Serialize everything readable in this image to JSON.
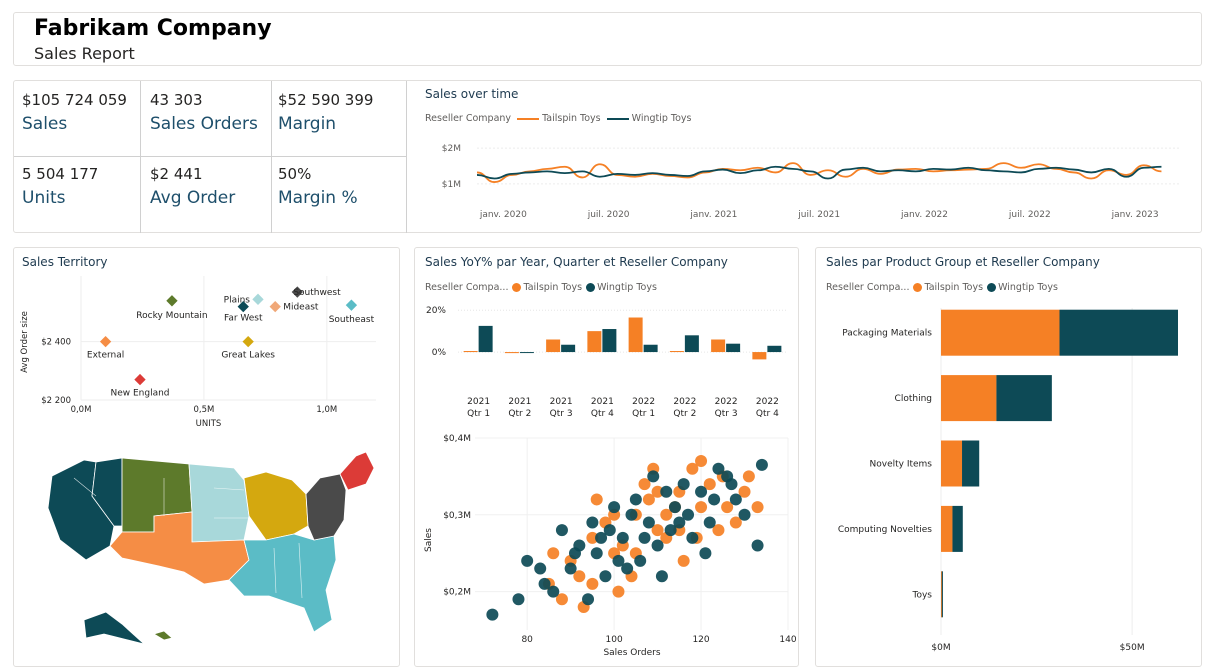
{
  "header": {
    "title": "Fabrikam Company",
    "subtitle": "Sales Report"
  },
  "colors": {
    "tailspin": "#f58025",
    "wingtip": "#0d4a56",
    "accent_text": "#1e4f6b"
  },
  "kpis": [
    {
      "value": "$105 724 059",
      "label": "Sales"
    },
    {
      "value": "43 303",
      "label": "Sales Orders"
    },
    {
      "value": "$52 590 399",
      "label": "Margin"
    },
    {
      "value": "5 504 177",
      "label": "Units"
    },
    {
      "value": "$2 441",
      "label": "Avg Order"
    },
    {
      "value": "50%",
      "label": "Margin %"
    }
  ],
  "legend": {
    "label_full": "Reseller Company",
    "label_short": "Reseller Compa...",
    "tailspin": "Tailspin Toys",
    "wingtip": "Wingtip Toys"
  },
  "panels": {
    "sales_over_time": "Sales over time",
    "territory": "Sales Territory",
    "yoy": "Sales YoY% par Year, Quarter et Reseller Company",
    "product": "Sales par Product Group et Reseller Company"
  },
  "chart_data": [
    {
      "id": "sales_over_time",
      "type": "line",
      "title": "Sales over time",
      "x_ticks": [
        "janv. 2020",
        "juil. 2020",
        "janv. 2021",
        "juil. 2021",
        "janv. 2022",
        "juil. 2022",
        "janv. 2023"
      ],
      "y_ticks": [
        "$1M",
        "$2M"
      ],
      "ylim": [
        0.8,
        2.2
      ],
      "xlim": [
        0,
        40
      ],
      "series": [
        {
          "name": "Tailspin Toys",
          "color": "#f58025",
          "values": [
            1.32,
            1.05,
            1.25,
            1.35,
            1.42,
            1.48,
            1.18,
            1.55,
            1.25,
            1.2,
            1.28,
            1.22,
            1.18,
            1.32,
            1.42,
            1.38,
            1.45,
            1.32,
            1.58,
            1.25,
            1.38,
            1.2,
            1.42,
            1.28,
            1.4,
            1.42,
            1.35,
            1.38,
            1.4,
            1.42,
            1.58,
            1.45,
            1.55,
            1.42,
            1.32,
            1.15,
            1.38,
            1.25,
            1.52,
            1.35
          ]
        },
        {
          "name": "Wingtip Toys",
          "color": "#0d4a56",
          "values": [
            1.25,
            1.15,
            1.28,
            1.32,
            1.35,
            1.3,
            1.35,
            1.2,
            1.28,
            1.25,
            1.3,
            1.25,
            1.22,
            1.35,
            1.4,
            1.3,
            1.38,
            1.48,
            1.42,
            1.35,
            1.15,
            1.4,
            1.45,
            1.35,
            1.38,
            1.35,
            1.42,
            1.4,
            1.45,
            1.38,
            1.35,
            1.32,
            1.42,
            1.45,
            1.4,
            1.32,
            1.42,
            1.2,
            1.45,
            1.48
          ]
        }
      ]
    },
    {
      "id": "territory_scatter",
      "type": "scatter",
      "xlabel": "UNITS",
      "ylabel": "Avg Order size",
      "x_ticks": [
        "0,0M",
        "0,5M",
        "1,0M"
      ],
      "y_ticks": [
        "$2 200",
        "$2 400"
      ],
      "xlim": [
        0,
        1.2
      ],
      "ylim": [
        2200,
        2625
      ],
      "points": [
        {
          "name": "External",
          "x": 0.1,
          "y": 2400,
          "color": "#f58d45"
        },
        {
          "name": "Rocky Mountain",
          "x": 0.37,
          "y": 2540,
          "color": "#5d7a2b"
        },
        {
          "name": "New England",
          "x": 0.24,
          "y": 2270,
          "color": "#dc3b37"
        },
        {
          "name": "Plains",
          "x": 0.72,
          "y": 2545,
          "color": "#a8d8da"
        },
        {
          "name": "Far West",
          "x": 0.66,
          "y": 2520,
          "color": "#0d4a56"
        },
        {
          "name": "Great Lakes",
          "x": 0.68,
          "y": 2400,
          "color": "#d4a80f"
        },
        {
          "name": "Southwest",
          "x": 0.88,
          "y": 2570,
          "color": "#4a4a4a"
        },
        {
          "name": "Mideast",
          "x": 0.79,
          "y": 2520,
          "color": "#f0a878"
        },
        {
          "name": "Southeast",
          "x": 1.1,
          "y": 2525,
          "color": "#5bbcc6"
        }
      ]
    },
    {
      "id": "yoy",
      "type": "bar",
      "title": "Sales YoY% par Year, Quarter et Reseller Company",
      "categories": [
        "2021 Qtr 1",
        "2021 Qtr 2",
        "2021 Qtr 3",
        "2021 Qtr 4",
        "2022 Qtr 1",
        "2022 Qtr 2",
        "2022 Qtr 3",
        "2022 Qtr 4"
      ],
      "y_ticks": [
        "0%",
        "20%"
      ],
      "ylim": [
        -10,
        22
      ],
      "series": [
        {
          "name": "Tailspin Toys",
          "color": "#f58025",
          "values": [
            0.5,
            -0.5,
            6,
            10,
            16.5,
            0.5,
            6,
            -3.5
          ]
        },
        {
          "name": "Wingtip Toys",
          "color": "#0d4a56",
          "values": [
            12.5,
            -0.3,
            3.5,
            11,
            3.5,
            8,
            4,
            3
          ]
        }
      ]
    },
    {
      "id": "orders_scatter",
      "type": "scatter",
      "xlabel": "Sales Orders",
      "ylabel": "Sales",
      "x_ticks": [
        "80",
        "100",
        "120",
        "140"
      ],
      "y_ticks": [
        "$0,2M",
        "$0,3M",
        "$0,4M"
      ],
      "xlim": [
        68,
        140
      ],
      "ylim": [
        0.15,
        0.4
      ],
      "series": [
        {
          "name": "Tailspin Toys",
          "color": "#f58025",
          "points": [
            [
              85,
              0.21
            ],
            [
              90,
              0.24
            ],
            [
              95,
              0.27
            ],
            [
              100,
              0.25
            ],
            [
              105,
              0.3
            ],
            [
              110,
              0.28
            ],
            [
              115,
              0.33
            ],
            [
              120,
              0.31
            ],
            [
              125,
              0.35
            ],
            [
              130,
              0.33
            ],
            [
              88,
              0.19
            ],
            [
              92,
              0.22
            ],
            [
              98,
              0.29
            ],
            [
              102,
              0.26
            ],
            [
              108,
              0.32
            ],
            [
              112,
              0.27
            ],
            [
              118,
              0.36
            ],
            [
              122,
              0.34
            ],
            [
              128,
              0.29
            ],
            [
              133,
              0.31
            ],
            [
              95,
              0.21
            ],
            [
              100,
              0.3
            ],
            [
              105,
              0.25
            ],
            [
              110,
              0.33
            ],
            [
              115,
              0.28
            ],
            [
              120,
              0.37
            ],
            [
              96,
              0.32
            ],
            [
              104,
              0.22
            ],
            [
              112,
              0.3
            ],
            [
              119,
              0.27
            ],
            [
              126,
              0.31
            ],
            [
              131,
              0.35
            ],
            [
              86,
              0.25
            ],
            [
              93,
              0.18
            ],
            [
              107,
              0.34
            ],
            [
              116,
              0.24
            ],
            [
              124,
              0.28
            ],
            [
              101,
              0.2
            ],
            [
              109,
              0.36
            ],
            [
              114,
              0.31
            ]
          ]
        },
        {
          "name": "Wingtip Toys",
          "color": "#0d4a56",
          "points": [
            [
              72,
              0.17
            ],
            [
              78,
              0.19
            ],
            [
              84,
              0.21
            ],
            [
              90,
              0.23
            ],
            [
              96,
              0.25
            ],
            [
              102,
              0.27
            ],
            [
              108,
              0.29
            ],
            [
              114,
              0.31
            ],
            [
              120,
              0.33
            ],
            [
              126,
              0.35
            ],
            [
              134,
              0.365
            ],
            [
              80,
              0.24
            ],
            [
              86,
              0.2
            ],
            [
              92,
              0.26
            ],
            [
              98,
              0.22
            ],
            [
              104,
              0.3
            ],
            [
              110,
              0.26
            ],
            [
              116,
              0.34
            ],
            [
              122,
              0.29
            ],
            [
              128,
              0.32
            ],
            [
              88,
              0.28
            ],
            [
              94,
              0.19
            ],
            [
              100,
              0.31
            ],
            [
              106,
              0.24
            ],
            [
              112,
              0.33
            ],
            [
              118,
              0.27
            ],
            [
              124,
              0.36
            ],
            [
              130,
              0.3
            ],
            [
              91,
              0.25
            ],
            [
              97,
              0.27
            ],
            [
              103,
              0.23
            ],
            [
              109,
              0.35
            ],
            [
              115,
              0.29
            ],
            [
              121,
              0.25
            ],
            [
              127,
              0.34
            ],
            [
              83,
              0.23
            ],
            [
              99,
              0.28
            ],
            [
              105,
              0.32
            ],
            [
              111,
              0.22
            ],
            [
              117,
              0.3
            ],
            [
              123,
              0.32
            ],
            [
              133,
              0.26
            ],
            [
              95,
              0.29
            ],
            [
              101,
              0.24
            ],
            [
              107,
              0.27
            ],
            [
              113,
              0.28
            ]
          ]
        }
      ]
    },
    {
      "id": "product",
      "type": "bar",
      "orientation": "horizontal",
      "title": "Sales par Product Group et Reseller Company",
      "categories": [
        "Packaging Materials",
        "Clothing",
        "Novelty Items",
        "Computing Novelties",
        "Toys"
      ],
      "x_ticks": [
        "$0M",
        "$50M"
      ],
      "xlim": [
        0,
        62
      ],
      "stacked": true,
      "series": [
        {
          "name": "Tailspin Toys",
          "color": "#f58025",
          "values": [
            31,
            14.5,
            5.5,
            3,
            0.2
          ]
        },
        {
          "name": "Wingtip Toys",
          "color": "#0d4a56",
          "values": [
            31,
            14.5,
            4.5,
            2.7,
            0.3
          ]
        }
      ]
    }
  ],
  "map": {
    "regions": [
      {
        "name": "Far West",
        "color": "#0d4a56"
      },
      {
        "name": "Rocky Mountain",
        "color": "#5d7a2b"
      },
      {
        "name": "Plains",
        "color": "#a8d8da"
      },
      {
        "name": "Great Lakes",
        "color": "#d4a80f"
      },
      {
        "name": "Southwest",
        "color": "#f58d45"
      },
      {
        "name": "Southeast",
        "color": "#5bbcc6"
      },
      {
        "name": "Mideast",
        "color": "#4a4a4a"
      },
      {
        "name": "New England",
        "color": "#dc3b37"
      }
    ]
  }
}
